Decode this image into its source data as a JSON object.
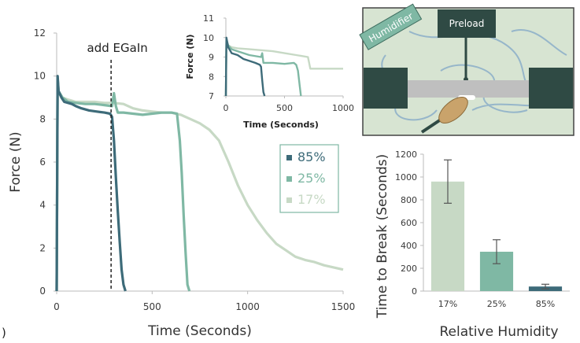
{
  "panel_label": ")",
  "diagram": {
    "humidifier_label": "Humidifier",
    "preload_label": "Preload"
  },
  "chart_data": [
    {
      "type": "line",
      "xlabel": "Time (Seconds)",
      "ylabel": "Force (N)",
      "xlim": [
        0,
        1500
      ],
      "ylim": [
        0,
        12
      ],
      "xticks": [
        "0",
        "500",
        "1000",
        "1500"
      ],
      "yticks": [
        "0",
        "2",
        "4",
        "6",
        "8",
        "10",
        "12"
      ],
      "annotation": {
        "text": "add EGaIn",
        "x": 285
      },
      "legend": {
        "placement": "right",
        "entries": [
          "85%",
          "25%",
          "17%"
        ]
      },
      "series": [
        {
          "name": "85%",
          "color": "#3d6b79",
          "x": [
            0,
            5,
            10,
            25,
            40,
            60,
            80,
            100,
            130,
            170,
            210,
            250,
            280,
            290,
            300,
            310,
            320,
            330,
            340,
            350,
            360
          ],
          "y": [
            0,
            10.0,
            9.3,
            9.0,
            8.8,
            8.75,
            8.7,
            8.6,
            8.5,
            8.4,
            8.35,
            8.3,
            8.25,
            8.1,
            7.0,
            5.3,
            3.7,
            2.3,
            1.0,
            0.3,
            0
          ]
        },
        {
          "name": "25%",
          "color": "#7fb8a4",
          "x": [
            0,
            5,
            10,
            30,
            60,
            100,
            150,
            200,
            250,
            290,
            300,
            310,
            320,
            350,
            400,
            450,
            500,
            550,
            600,
            630,
            645,
            655,
            665,
            675,
            685,
            695
          ],
          "y": [
            0,
            9.9,
            9.3,
            9.0,
            8.8,
            8.75,
            8.7,
            8.7,
            8.65,
            8.6,
            9.2,
            8.6,
            8.3,
            8.3,
            8.25,
            8.2,
            8.25,
            8.3,
            8.3,
            8.25,
            7.0,
            5.5,
            3.5,
            1.8,
            0.3,
            0
          ]
        },
        {
          "name": "17%",
          "color": "#c7d9c5",
          "x": [
            0,
            5,
            10,
            30,
            60,
            100,
            150,
            200,
            250,
            300,
            350,
            400,
            450,
            500,
            550,
            600,
            650,
            700,
            750,
            800,
            850,
            900,
            950,
            1000,
            1050,
            1100,
            1150,
            1200,
            1250,
            1300,
            1350,
            1400,
            1450,
            1500
          ],
          "y": [
            0,
            9.8,
            9.2,
            9.0,
            8.9,
            8.8,
            8.8,
            8.8,
            8.75,
            8.75,
            8.7,
            8.5,
            8.4,
            8.35,
            8.3,
            8.3,
            8.2,
            8.0,
            7.8,
            7.5,
            7.0,
            6.0,
            4.9,
            4.0,
            3.3,
            2.7,
            2.2,
            1.9,
            1.6,
            1.45,
            1.35,
            1.2,
            1.1,
            1.0
          ]
        }
      ]
    },
    {
      "type": "line",
      "inset": true,
      "xlabel": "Time (Seconds)",
      "ylabel": "Force (N)",
      "xlim": [
        0,
        1000
      ],
      "ylim": [
        7,
        11
      ],
      "xticks": [
        "0",
        "500",
        "1000"
      ],
      "yticks": [
        "7",
        "8",
        "9",
        "10",
        "11"
      ],
      "series": [
        {
          "name": "85%",
          "color": "#3d6b79",
          "x": [
            0,
            5,
            20,
            50,
            100,
            150,
            200,
            250,
            290,
            300,
            310,
            320,
            330
          ],
          "y": [
            7,
            10.0,
            9.5,
            9.2,
            9.1,
            8.9,
            8.8,
            8.7,
            8.6,
            8.5,
            7.8,
            7.2,
            7
          ]
        },
        {
          "name": "25%",
          "color": "#7fb8a4",
          "x": [
            0,
            5,
            20,
            50,
            100,
            200,
            300,
            310,
            320,
            400,
            500,
            580,
            600,
            615,
            630,
            640
          ],
          "y": [
            7,
            9.9,
            9.6,
            9.4,
            9.3,
            9.1,
            9.0,
            9.2,
            8.7,
            8.7,
            8.65,
            8.7,
            8.6,
            8.3,
            7.5,
            7
          ]
        },
        {
          "name": "17%",
          "color": "#c7d9c5",
          "x": [
            0,
            5,
            20,
            50,
            100,
            200,
            300,
            400,
            500,
            600,
            700,
            710,
            720,
            800,
            900,
            1000
          ],
          "y": [
            7,
            9.8,
            9.6,
            9.5,
            9.45,
            9.4,
            9.35,
            9.3,
            9.2,
            9.1,
            9.0,
            8.7,
            8.4,
            8.4,
            8.4,
            8.4
          ]
        }
      ]
    },
    {
      "type": "bar",
      "xlabel": "Relative Humidity",
      "ylabel": "Time to Break (Seconds)",
      "ylim": [
        0,
        1200
      ],
      "yticks": [
        "0",
        "200",
        "400",
        "600",
        "800",
        "1000",
        "1200"
      ],
      "categories": [
        "17%",
        "25%",
        "85%"
      ],
      "values": [
        960,
        345,
        40
      ],
      "errors": [
        190,
        105,
        20
      ],
      "colors": [
        "#c7d9c5",
        "#7fb8a4",
        "#3d6b79"
      ]
    }
  ]
}
